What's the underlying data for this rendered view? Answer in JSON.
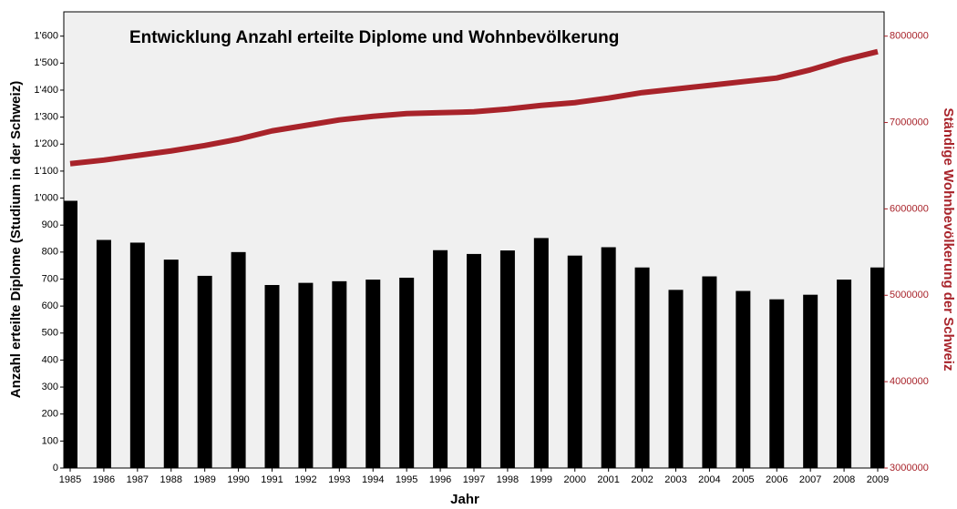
{
  "chart_data": {
    "type": "combo",
    "title": "Entwicklung Anzahl erteilte Diplome und Wohnbevölkerung",
    "xlabel": "Jahr",
    "ylabel": "Anzahl erteilte Diplome (Studium in der Schweiz)",
    "y2label": "Ständige Wohnbevölkerung der Schweiz",
    "categories": [
      "1985",
      "1986",
      "1987",
      "1988",
      "1989",
      "1990",
      "1991",
      "1992",
      "1993",
      "1994",
      "1995",
      "1996",
      "1997",
      "1998",
      "1999",
      "2000",
      "2001",
      "2002",
      "2003",
      "2004",
      "2005",
      "2006",
      "2007",
      "2008",
      "2009"
    ],
    "series": [
      {
        "type": "bar",
        "color": "#000000",
        "values": [
          990,
          845,
          835,
          772,
          712,
          800,
          678,
          686,
          692,
          698,
          705,
          807,
          793,
          806,
          852,
          787,
          818,
          743,
          660,
          710,
          656,
          625,
          642,
          698,
          743
        ]
      },
      {
        "type": "line",
        "axis": "y2",
        "color": "#a8232a",
        "values": [
          6523000,
          6565000,
          6618000,
          6671000,
          6734000,
          6808000,
          6903000,
          6966000,
          7030000,
          7072000,
          7103000,
          7114000,
          7124000,
          7156000,
          7198000,
          7230000,
          7283000,
          7346000,
          7388000,
          7430000,
          7473000,
          7515000,
          7610000,
          7726000,
          7821000
        ]
      }
    ],
    "ylim": [
      0,
      1690
    ],
    "yticks": [
      0,
      100,
      200,
      300,
      400,
      500,
      600,
      700,
      800,
      900,
      {
        "value": 1000,
        "label": "1'000"
      },
      {
        "value": 1100,
        "label": "1'100"
      },
      {
        "value": 1200,
        "label": "1'200"
      },
      {
        "value": 1300,
        "label": "1'300"
      },
      {
        "value": 1400,
        "label": "1'400"
      },
      {
        "value": 1500,
        "label": "1'500"
      },
      {
        "value": 1600,
        "label": "1'600"
      }
    ],
    "y2lim": [
      3000000,
      8281250
    ],
    "y2ticks": [
      3000000,
      4000000,
      5000000,
      6000000,
      7000000,
      8000000
    ],
    "background": "#f0f0f0"
  }
}
